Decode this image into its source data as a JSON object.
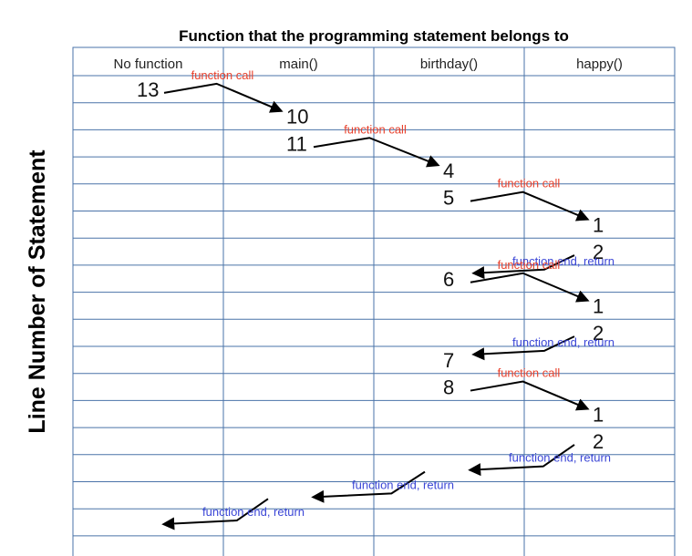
{
  "title": "Function that the programming statement belongs to",
  "ylabel": "Line Number of Statement",
  "columns": [
    "No function",
    "main()",
    "birthday()",
    "happy()"
  ],
  "colors": {
    "grid": "#4a73a8",
    "call": "#e8412c",
    "return": "#3b46d6",
    "arrow": "#000000"
  },
  "steps": [
    {
      "line": "13",
      "column": 0
    },
    {
      "line": "10",
      "column": 1
    },
    {
      "line": "11",
      "column": 1
    },
    {
      "line": "4",
      "column": 2
    },
    {
      "line": "5",
      "column": 2
    },
    {
      "line": "1",
      "column": 3
    },
    {
      "line": "2",
      "column": 3
    },
    {
      "line": "6",
      "column": 2
    },
    {
      "line": "1",
      "column": 3
    },
    {
      "line": "2",
      "column": 3
    },
    {
      "line": "7",
      "column": 2
    },
    {
      "line": "8",
      "column": 2
    },
    {
      "line": "1",
      "column": 3
    },
    {
      "line": "2",
      "column": 3
    },
    {
      "line": "",
      "column": 2
    },
    {
      "line": "",
      "column": 1
    },
    {
      "line": "",
      "column": 0
    }
  ],
  "transitions": [
    {
      "kind": "call",
      "label": "function call"
    },
    {
      "kind": "call",
      "label": "function call"
    },
    {
      "kind": "call",
      "label": "function call"
    },
    {
      "kind": "return",
      "label": "function end, return"
    },
    {
      "kind": "call",
      "label": "function call"
    },
    {
      "kind": "return",
      "label": "function end, return"
    },
    {
      "kind": "call",
      "label": "function call"
    },
    {
      "kind": "return",
      "label": "function end, return"
    },
    {
      "kind": "return",
      "label": "function end, return"
    },
    {
      "kind": "return",
      "label": "function end, return"
    }
  ]
}
